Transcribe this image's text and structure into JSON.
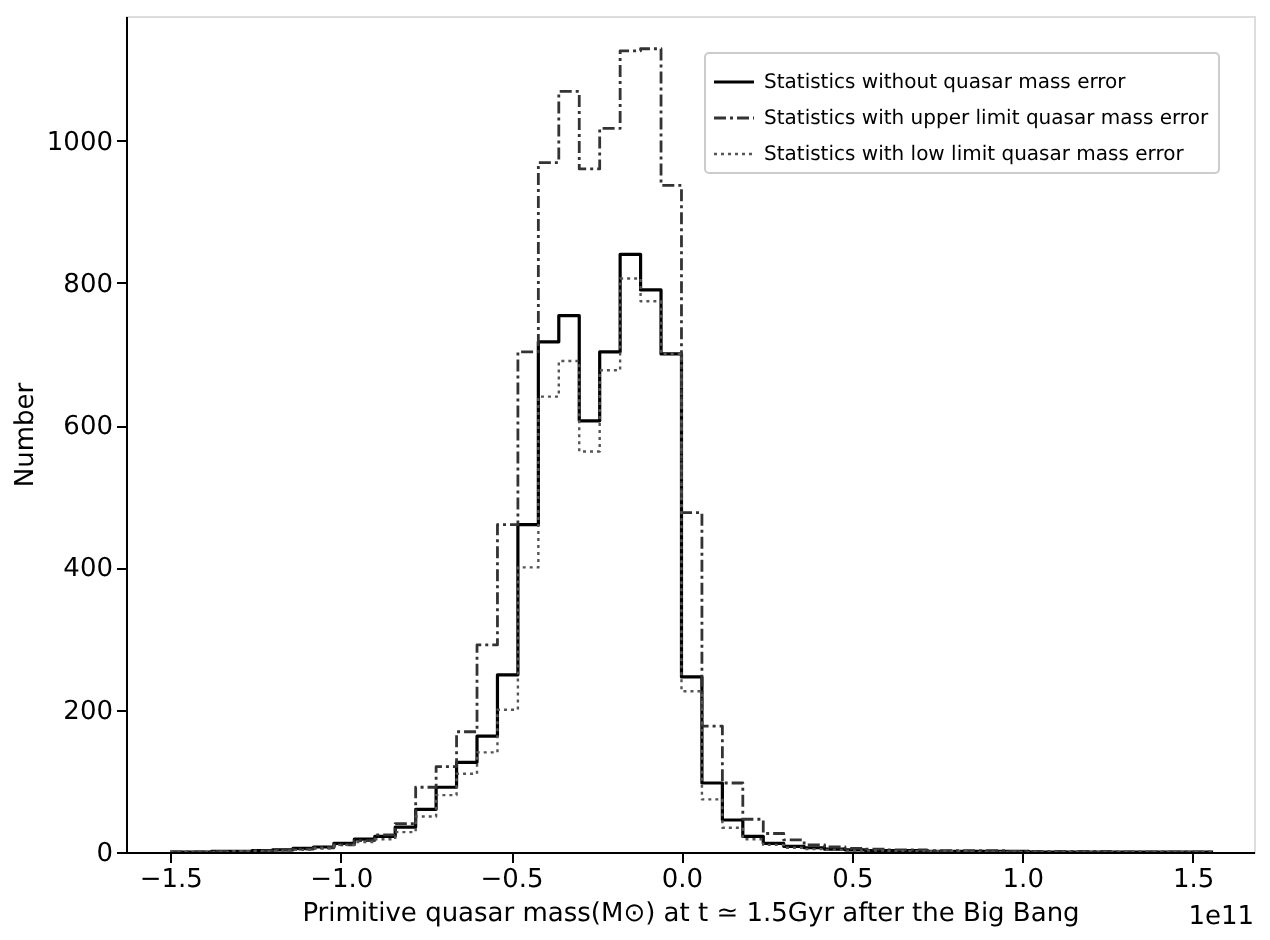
{
  "chart_data": {
    "type": "histogram",
    "xlabel": "Primitive quasar mass(M⊙) at t ≃ 1.5Gyr after the Big Bang",
    "ylabel": "Number",
    "annotations": [
      "1e11"
    ],
    "bins": [
      -1.5,
      -1.44,
      -1.38,
      -1.32,
      -1.26,
      -1.2,
      -1.14,
      -1.08,
      -1.02,
      -0.96,
      -0.9,
      -0.84,
      -0.78,
      -0.72,
      -0.66,
      -0.6,
      -0.54,
      -0.48,
      -0.42,
      -0.36,
      -0.3,
      -0.24,
      -0.18,
      -0.12,
      -0.06,
      0.0,
      0.06,
      0.12,
      0.18,
      0.24,
      0.3,
      0.36,
      0.42,
      0.48,
      0.54,
      0.6,
      0.66,
      0.72,
      0.78,
      0.84,
      0.9,
      0.96,
      1.02,
      1.08,
      1.14,
      1.2,
      1.26,
      1.32,
      1.38,
      1.44,
      1.5,
      1.56
    ],
    "series": [
      {
        "name": "Statistics without quasar mass error",
        "color": "#000000",
        "line_style": "solid",
        "values": [
          0,
          0,
          1,
          1,
          2,
          3,
          5,
          7,
          12,
          18,
          22,
          35,
          60,
          91,
          126,
          163,
          249,
          460,
          717,
          754,
          606,
          703,
          840,
          790,
          700,
          246,
          97,
          45,
          22,
          12,
          8,
          6,
          4,
          3,
          2,
          2,
          2,
          1,
          1,
          1,
          1,
          1,
          0,
          0,
          0,
          0,
          0,
          0,
          0,
          0,
          0
        ]
      },
      {
        "name": "Statistics with upper limit quasar mass error",
        "color": "#333333",
        "line_style": "dashdot",
        "values": [
          0,
          0,
          1,
          1,
          2,
          3,
          4,
          6,
          10,
          16,
          24,
          40,
          91,
          120,
          169,
          291,
          460,
          703,
          969,
          1069,
          960,
          1017,
          1126,
          1129,
          937,
          477,
          177,
          97,
          46,
          26,
          17,
          10,
          7,
          5,
          4,
          3,
          3,
          2,
          2,
          2,
          2,
          1,
          1,
          1,
          1,
          1,
          0,
          0,
          0,
          0,
          0
        ]
      },
      {
        "name": "Statistics with low limit quasar mass error",
        "color": "#555555",
        "line_style": "dotted",
        "values": [
          0,
          0,
          0,
          1,
          1,
          2,
          3,
          5,
          10,
          14,
          18,
          28,
          50,
          80,
          110,
          140,
          200,
          400,
          640,
          690,
          563,
          677,
          806,
          774,
          700,
          226,
          74,
          34,
          18,
          10,
          6,
          4,
          3,
          2,
          2,
          1,
          1,
          1,
          1,
          0,
          0,
          0,
          0,
          0,
          0,
          0,
          0,
          0,
          0,
          0,
          0
        ]
      }
    ],
    "xlim": [
      -1.63,
      1.68
    ],
    "xticks": [
      {
        "value": -1.5,
        "label": "−1.5"
      },
      {
        "value": -1.0,
        "label": "−1.0"
      },
      {
        "value": -0.5,
        "label": "−0.5"
      },
      {
        "value": 0,
        "label": "0.0"
      },
      {
        "value": 0.5,
        "label": "0.5"
      },
      {
        "value": 1.0,
        "label": "1.0"
      },
      {
        "value": 1.5,
        "label": "1.5"
      }
    ],
    "ylim": [
      0,
      1175
    ],
    "yticks": [
      0,
      200,
      400,
      600,
      800,
      1000
    ],
    "grid": false,
    "legend": "top right"
  }
}
